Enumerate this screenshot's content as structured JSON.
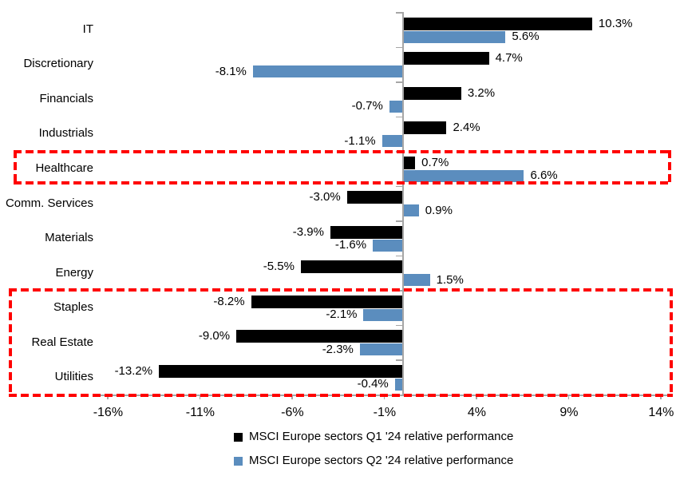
{
  "chart_data": {
    "type": "bar",
    "orientation": "horizontal",
    "title": "",
    "xlabel": "",
    "ylabel": "",
    "unit": "%",
    "grid": false,
    "legend_position": "bottom",
    "categories": [
      "IT",
      "Discretionary",
      "Financials",
      "Industrials",
      "Healthcare",
      "Comm. Services",
      "Materials",
      "Energy",
      "Staples",
      "Real Estate",
      "Utilities"
    ],
    "series": [
      {
        "name": "MSCI Europe sectors Q1 '24 relative performance",
        "color": "#000000",
        "values": [
          10.3,
          4.7,
          3.2,
          2.4,
          0.7,
          -3.0,
          -3.9,
          -5.5,
          -8.2,
          -9.0,
          -13.2
        ]
      },
      {
        "name": "MSCI Europe sectors Q2 '24 relative performance",
        "color": "#5B8DBE",
        "values": [
          5.6,
          -8.1,
          -0.7,
          -1.1,
          6.6,
          0.9,
          -1.6,
          1.5,
          -2.1,
          -2.3,
          -0.4
        ]
      }
    ],
    "data_labels": [
      "10.3%",
      "5.6%",
      "4.7%",
      "-8.1%",
      "3.2%",
      "-0.7%",
      "2.4%",
      "-1.1%",
      "0.7%",
      "6.6%",
      "-3.0%",
      "0.9%",
      "-3.9%",
      "-1.6%",
      "-5.5%",
      "1.5%",
      "-8.2%",
      "-2.1%",
      "-9.0%",
      "-2.3%",
      "-13.2%",
      "-0.4%"
    ],
    "x_ticks": [
      "-16%",
      "-11%",
      "-6%",
      "-1%",
      "4%",
      "9%",
      "14%"
    ],
    "x_tick_values": [
      -16,
      -11,
      -6,
      -1,
      4,
      9,
      14
    ],
    "xlim": [
      -16.5,
      14.6
    ],
    "annotations": {
      "highlight_color": "#FF0000",
      "highlight_boxes": [
        {
          "from_category": "Healthcare",
          "to_category": "Healthcare"
        },
        {
          "from_category": "Staples",
          "to_category": "Utilities"
        }
      ]
    }
  }
}
